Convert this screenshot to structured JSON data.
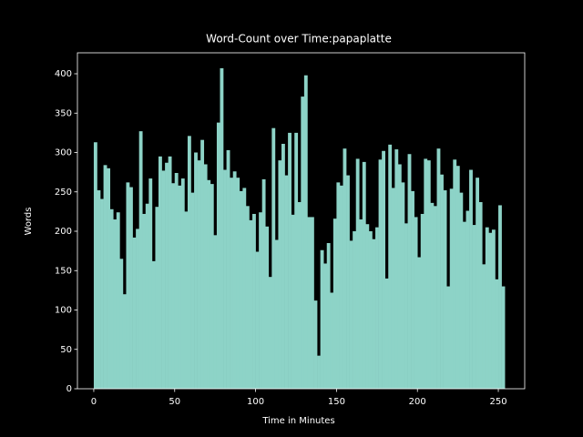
{
  "chart_data": {
    "type": "histogram",
    "title": "Word-Count over Time:papaplatte",
    "xlabel": "Time in Minutes",
    "ylabel": "Words",
    "color": "#8dd3c7",
    "bins": [
      0,
      2,
      4,
      6,
      8,
      10,
      12,
      14,
      16,
      18,
      20,
      22,
      24,
      26,
      28,
      30,
      32,
      34,
      36,
      38,
      40,
      42,
      44,
      46,
      48,
      50,
      52,
      54,
      56,
      58,
      60,
      62,
      64,
      66,
      68,
      70,
      72,
      74,
      76,
      78,
      80,
      82,
      84,
      86,
      88,
      90,
      92,
      94,
      96,
      98,
      100,
      102,
      104,
      106,
      108,
      110,
      112,
      114,
      116,
      118,
      120,
      122,
      124,
      126,
      128,
      130,
      132,
      134,
      136,
      138,
      140,
      142,
      144,
      146,
      148,
      150,
      152,
      154,
      156,
      158,
      160,
      162,
      164,
      166,
      168,
      170,
      172,
      174,
      176,
      178,
      180,
      182,
      184,
      186,
      188,
      190,
      192,
      194,
      196,
      198,
      200,
      202,
      204,
      206,
      208,
      210,
      212,
      214,
      216,
      218,
      220,
      222,
      224,
      226,
      228,
      230,
      232,
      234,
      236,
      238,
      240,
      242,
      244,
      246,
      248,
      250,
      252,
      254
    ],
    "values": [
      313,
      252,
      241,
      284,
      280,
      228,
      215,
      224,
      165,
      120,
      262,
      256,
      192,
      203,
      327,
      222,
      235,
      267,
      162,
      231,
      295,
      277,
      287,
      295,
      261,
      274,
      258,
      267,
      225,
      321,
      249,
      300,
      290,
      316,
      285,
      265,
      260,
      195,
      338,
      407,
      278,
      303,
      268,
      276,
      268,
      251,
      255,
      232,
      214,
      222,
      174,
      224,
      266,
      206,
      142,
      331,
      189,
      290,
      311,
      271,
      325,
      221,
      325,
      237,
      371,
      398,
      218,
      218,
      112,
      42,
      176,
      159,
      185,
      122,
      216,
      262,
      258,
      305,
      271,
      188,
      200,
      292,
      215,
      288,
      209,
      200,
      190,
      205,
      291,
      302,
      140,
      310,
      255,
      304,
      285,
      262,
      210,
      298,
      251,
      218,
      167,
      222,
      292,
      290,
      236,
      232,
      305,
      272,
      252,
      130,
      254,
      291,
      283,
      249,
      212,
      226,
      278,
      208,
      268,
      237,
      158,
      205,
      198,
      202,
      139,
      233,
      130
    ],
    "xlim": [
      -10.1,
      266.3
    ],
    "ylim": [
      0,
      426.6
    ],
    "xticks": [
      0,
      50,
      100,
      150,
      200,
      250
    ],
    "yticks": [
      0,
      50,
      100,
      150,
      200,
      250,
      300,
      350,
      400
    ]
  }
}
